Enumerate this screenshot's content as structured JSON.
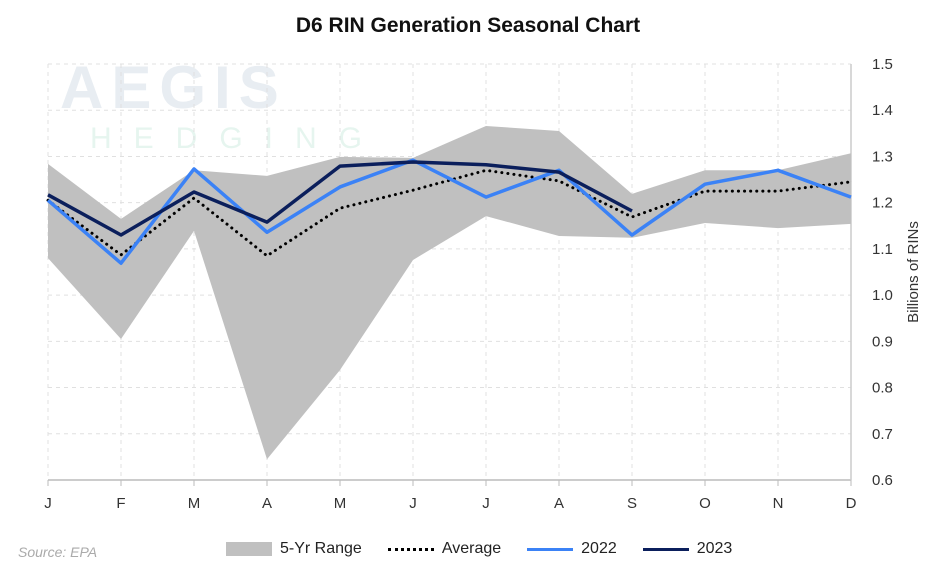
{
  "chart_data": {
    "type": "line",
    "title": "D6 RIN Generation Seasonal Chart",
    "ylabel": "Billions of RINs",
    "ylim": [
      0.6,
      1.5
    ],
    "yticks": [
      "0.6",
      "0.7",
      "0.8",
      "0.9",
      "1.0",
      "1.1",
      "1.2",
      "1.3",
      "1.4",
      "1.5"
    ],
    "y_axis_side": "right",
    "grid": true,
    "legend_position": "bottom",
    "categories": [
      "J",
      "F",
      "M",
      "A",
      "M",
      "J",
      "J",
      "A",
      "S",
      "O",
      "N",
      "D"
    ],
    "range": {
      "name": "5-Yr Range",
      "color": "#c0c0c0",
      "upper": [
        1.284,
        1.165,
        1.27,
        1.258,
        1.299,
        1.297,
        1.366,
        1.355,
        1.219,
        1.27,
        1.27,
        1.307
      ],
      "lower": [
        1.08,
        0.905,
        1.139,
        0.645,
        0.838,
        1.076,
        1.171,
        1.128,
        1.124,
        1.156,
        1.145,
        1.154
      ]
    },
    "series": [
      {
        "name": "Average",
        "color": "#000000",
        "style": "dotted",
        "values": [
          1.205,
          1.087,
          1.21,
          1.085,
          1.188,
          1.227,
          1.27,
          1.247,
          1.169,
          1.225,
          1.225,
          1.245
        ]
      },
      {
        "name": "2022",
        "color": "#3b82f6",
        "style": "solid",
        "values": [
          1.205,
          1.069,
          1.273,
          1.136,
          1.234,
          1.292,
          1.212,
          1.27,
          1.13,
          1.24,
          1.27,
          1.212
        ]
      },
      {
        "name": "2023",
        "color": "#0b1f5c",
        "style": "solid",
        "values": [
          1.217,
          1.13,
          1.223,
          1.158,
          1.279,
          1.288,
          1.282,
          1.266,
          1.182,
          null,
          null,
          null
        ]
      }
    ]
  },
  "source": "Source: EPA",
  "watermark": {
    "line1": "AEGIS",
    "line2": "HEDGING"
  }
}
